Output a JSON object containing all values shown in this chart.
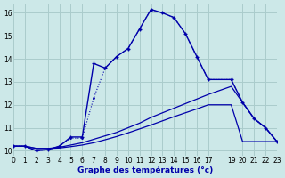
{
  "xlabel": "Graphe des températures (°c)",
  "background_color": "#cce8e8",
  "grid_color": "#aacccc",
  "line_color": "#0000aa",
  "xlim": [
    0,
    23
  ],
  "ylim": [
    9.8,
    16.4
  ],
  "xticks": [
    0,
    1,
    2,
    3,
    4,
    5,
    6,
    7,
    8,
    9,
    10,
    11,
    12,
    13,
    14,
    15,
    16,
    17,
    19,
    20,
    21,
    22,
    23
  ],
  "yticks": [
    10,
    11,
    12,
    13,
    14,
    15,
    16
  ],
  "curve1_x": [
    0,
    1,
    2,
    3,
    4,
    5,
    6,
    7,
    8,
    9,
    10,
    11,
    12,
    13,
    14,
    15,
    16,
    17,
    19,
    20,
    21,
    22,
    23
  ],
  "curve1_y": [
    10.2,
    10.2,
    10.0,
    10.05,
    10.2,
    10.6,
    10.6,
    13.8,
    13.6,
    14.1,
    14.45,
    15.3,
    16.15,
    16.0,
    15.8,
    15.1,
    14.1,
    13.1,
    13.1,
    12.1,
    11.4,
    11.0,
    10.4
  ],
  "curve2_x": [
    0,
    1,
    2,
    3,
    4,
    5,
    6,
    7,
    8,
    9,
    10,
    11,
    12,
    13,
    14,
    15,
    16,
    17,
    19,
    20,
    21,
    22,
    23
  ],
  "curve2_y": [
    10.2,
    10.2,
    10.0,
    10.05,
    10.2,
    10.55,
    10.55,
    12.3,
    13.6,
    14.1,
    14.45,
    15.3,
    16.15,
    16.0,
    15.8,
    15.1,
    14.1,
    13.1,
    13.1,
    12.1,
    11.4,
    11.0,
    10.4
  ],
  "curve3_x": [
    0,
    1,
    2,
    3,
    4,
    5,
    6,
    7,
    8,
    9,
    10,
    11,
    12,
    13,
    14,
    15,
    16,
    17,
    19,
    20,
    21,
    22,
    23
  ],
  "curve3_y": [
    10.2,
    10.2,
    10.1,
    10.1,
    10.15,
    10.25,
    10.35,
    10.5,
    10.65,
    10.8,
    11.0,
    11.2,
    11.45,
    11.65,
    11.85,
    12.05,
    12.25,
    12.45,
    12.8,
    12.1,
    11.4,
    11.0,
    10.4
  ],
  "curve4_x": [
    0,
    1,
    2,
    3,
    4,
    5,
    6,
    7,
    8,
    9,
    10,
    11,
    12,
    13,
    14,
    15,
    16,
    17,
    19,
    20,
    21,
    22,
    23
  ],
  "curve4_y": [
    10.2,
    10.2,
    10.1,
    10.1,
    10.12,
    10.18,
    10.25,
    10.35,
    10.48,
    10.62,
    10.78,
    10.95,
    11.12,
    11.3,
    11.48,
    11.65,
    11.82,
    12.0,
    12.0,
    10.4,
    10.4,
    10.4,
    10.4
  ]
}
